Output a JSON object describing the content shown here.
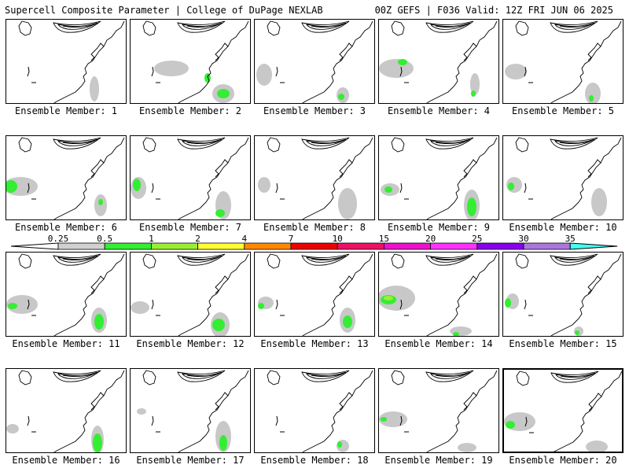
{
  "header": {
    "left_title": "Supercell Composite Parameter | College of DuPage NEXLAB",
    "right_title": "00Z GEFS | F036 Valid: 12Z FRI JUN 06 2025"
  },
  "legend": {
    "ticks": [
      "0.25",
      "0.5",
      "1",
      "2",
      "4",
      "7",
      "10",
      "15",
      "20",
      "25",
      "30",
      "35"
    ],
    "colors": [
      "#d0d0d0",
      "#33ee33",
      "#99ee33",
      "#ffff33",
      "#ff8800",
      "#ee0000",
      "#ee1166",
      "#ee11cc",
      "#ff33ff",
      "#8800ee",
      "#aa77dd",
      "#44ffee"
    ]
  },
  "members": [
    {
      "label": "Ensemble Member: 1"
    },
    {
      "label": "Ensemble Member: 2"
    },
    {
      "label": "Ensemble Member: 3"
    },
    {
      "label": "Ensemble Member: 4"
    },
    {
      "label": "Ensemble Member: 5"
    },
    {
      "label": "Ensemble Member: 6"
    },
    {
      "label": "Ensemble Member: 7"
    },
    {
      "label": "Ensemble Member: 8"
    },
    {
      "label": "Ensemble Member: 9"
    },
    {
      "label": "Ensemble Member: 10"
    },
    {
      "label": "Ensemble Member: 11"
    },
    {
      "label": "Ensemble Member: 12"
    },
    {
      "label": "Ensemble Member: 13"
    },
    {
      "label": "Ensemble Member: 14"
    },
    {
      "label": "Ensemble Member: 15"
    },
    {
      "label": "Ensemble Member: 16"
    },
    {
      "label": "Ensemble Member: 17"
    },
    {
      "label": "Ensemble Member: 18"
    },
    {
      "label": "Ensemble Member: 19"
    },
    {
      "label": "Ensemble Member: 20",
      "selected": true
    }
  ]
}
